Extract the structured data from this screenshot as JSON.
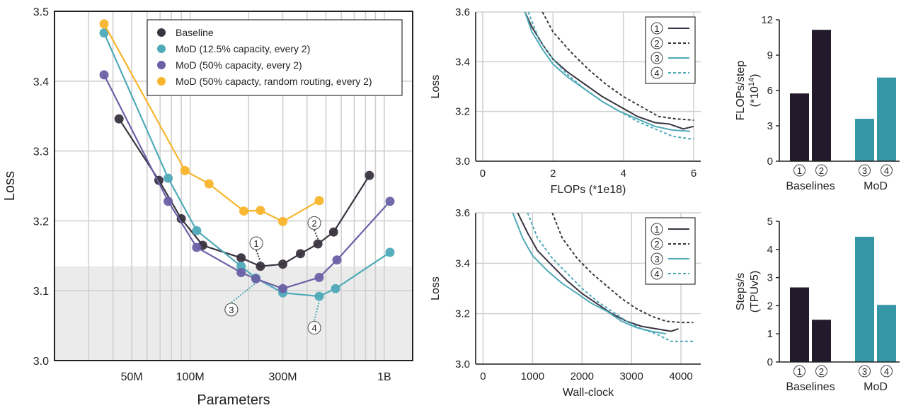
{
  "colors": {
    "baseline": "#3a3440",
    "mod_12": "#4faab8",
    "mod_50": "#6a62a6",
    "mod_rand": "#f7b52c",
    "bar_baseline": "#231a2c",
    "bar_mod": "#3597a6",
    "shade": "#ebebeb",
    "grid": "#d0d0d0"
  },
  "chart_data": [
    {
      "type": "scatter",
      "xlabel": "Parameters",
      "ylabel": "Loss",
      "xscale": "log",
      "xlim": [
        20,
        1400
      ],
      "ylim": [
        3.0,
        3.5
      ],
      "xticks": [
        {
          "value": 50,
          "label": "50M"
        },
        {
          "value": 100,
          "label": "100M"
        },
        {
          "value": 300,
          "label": "300M"
        },
        {
          "value": 1000,
          "label": "1B"
        }
      ],
      "yticks": [
        {
          "value": 3.0,
          "label": "3.0"
        },
        {
          "value": 3.1,
          "label": "3.1"
        },
        {
          "value": 3.2,
          "label": "3.2"
        },
        {
          "value": 3.3,
          "label": "3.3"
        },
        {
          "value": 3.4,
          "label": "3.4"
        },
        {
          "value": 3.5,
          "label": "3.5"
        }
      ],
      "shaded_below": 3.135,
      "legend_position": "top-right",
      "series": [
        {
          "name": "Baseline",
          "color_key": "baseline",
          "points": [
            [
              43,
              3.346
            ],
            [
              69,
              3.258
            ],
            [
              90,
              3.203
            ],
            [
              116,
              3.165
            ],
            [
              183,
              3.147
            ],
            [
              230,
              3.135
            ],
            [
              300,
              3.138
            ],
            [
              370,
              3.153
            ],
            [
              455,
              3.167
            ],
            [
              548,
              3.184
            ],
            [
              838,
              3.265
            ]
          ]
        },
        {
          "name": "MoD (12.5% capacity, every 2)",
          "color_key": "mod_12",
          "points": [
            [
              36,
              3.469
            ],
            [
              77,
              3.261
            ],
            [
              108,
              3.186
            ],
            [
              183,
              3.135
            ],
            [
              218,
              3.118
            ],
            [
              300,
              3.097
            ],
            [
              462,
              3.092
            ],
            [
              561,
              3.103
            ],
            [
              1070,
              3.155
            ]
          ]
        },
        {
          "name": "MoD (50% capacity, every 2)",
          "color_key": "mod_50",
          "points": [
            [
              36,
              3.409
            ],
            [
              77,
              3.228
            ],
            [
              108,
              3.162
            ],
            [
              183,
              3.126
            ],
            [
              218,
              3.117
            ],
            [
              300,
              3.103
            ],
            [
              462,
              3.119
            ],
            [
              570,
              3.144
            ],
            [
              1070,
              3.228
            ]
          ]
        },
        {
          "name": "MoD (50% capacty, random routing, every 2)",
          "color_key": "mod_rand",
          "points": [
            [
              36,
              3.482
            ],
            [
              94,
              3.272
            ],
            [
              125,
              3.253
            ],
            [
              189,
              3.214
            ],
            [
              230,
              3.215
            ],
            [
              300,
              3.199
            ],
            [
              462,
              3.229
            ]
          ]
        }
      ],
      "annotations": [
        {
          "label": "①",
          "x": 219,
          "y": 3.168,
          "target": [
            230,
            3.135
          ],
          "color_key": "baseline"
        },
        {
          "label": "②",
          "x": 436,
          "y": 3.197,
          "target": [
            455,
            3.167
          ],
          "color_key": "baseline"
        },
        {
          "label": "③",
          "x": 163,
          "y": 3.073,
          "target": [
            218,
            3.118
          ],
          "color_key": "mod_12"
        },
        {
          "label": "④",
          "x": 436,
          "y": 3.047,
          "target": [
            462,
            3.092
          ],
          "color_key": "mod_12"
        }
      ]
    },
    {
      "type": "line",
      "xlabel": "FLOPs (*1e18)",
      "ylabel": "Loss",
      "xlim": [
        -0.2,
        6.2
      ],
      "ylim": [
        3.0,
        3.6
      ],
      "xticks": [
        0,
        2,
        4,
        6
      ],
      "yticks": [
        3.0,
        3.2,
        3.4,
        3.6
      ],
      "legend_position": "top-right",
      "series": [
        {
          "name": "①",
          "color_key": "baseline",
          "dash": false,
          "x": [
            1.2,
            1.4,
            1.7,
            2.0,
            2.4,
            2.9,
            3.4,
            3.9,
            4.4,
            4.9,
            5.3,
            5.7,
            6.0
          ],
          "y": [
            3.6,
            3.54,
            3.47,
            3.41,
            3.36,
            3.31,
            3.26,
            3.22,
            3.18,
            3.155,
            3.15,
            3.13,
            3.14
          ]
        },
        {
          "name": "②",
          "color_key": "baseline",
          "dash": true,
          "x": [
            1.7,
            2.0,
            2.5,
            3.0,
            3.5,
            4.0,
            4.5,
            5.0,
            5.5,
            6.0
          ],
          "y": [
            3.6,
            3.52,
            3.44,
            3.37,
            3.31,
            3.26,
            3.22,
            3.18,
            3.17,
            3.165
          ]
        },
        {
          "name": "③",
          "color_key": "mod_12",
          "dash": false,
          "x": [
            1.2,
            1.4,
            1.7,
            2.0,
            2.4,
            2.9,
            3.4,
            3.9,
            4.4,
            4.9,
            5.4,
            5.9
          ],
          "y": [
            3.6,
            3.52,
            3.45,
            3.39,
            3.34,
            3.29,
            3.24,
            3.2,
            3.17,
            3.14,
            3.125,
            3.12
          ]
        },
        {
          "name": "④",
          "color_key": "mod_12",
          "dash": true,
          "x": [
            1.3,
            1.6,
            2.0,
            2.4,
            2.9,
            3.4,
            3.9,
            4.4,
            4.9,
            5.4,
            5.9,
            6.0
          ],
          "y": [
            3.6,
            3.49,
            3.41,
            3.35,
            3.29,
            3.24,
            3.2,
            3.16,
            3.13,
            3.1,
            3.09,
            3.09
          ]
        }
      ]
    },
    {
      "type": "bar",
      "ylabel": "FLOPs/step",
      "ylabel_sub": "(*10",
      "ylabel_sup": "14",
      "ylabel_end": ")",
      "ylim": [
        0,
        12
      ],
      "yticks": [
        0,
        3,
        6,
        9,
        12
      ],
      "categories": [
        "①",
        "②",
        "③",
        "④"
      ],
      "groups": [
        "Baselines",
        "MoD"
      ],
      "values": [
        5.75,
        11.15,
        3.6,
        7.1
      ]
    },
    {
      "type": "line",
      "xlabel": "Wall-clock",
      "ylabel": "Loss",
      "xlim": [
        -150,
        4400
      ],
      "ylim": [
        3.0,
        3.6
      ],
      "xticks": [
        0,
        1000,
        2000,
        3000,
        4000
      ],
      "yticks": [
        3.0,
        3.2,
        3.4,
        3.6
      ],
      "legend_position": "top-right",
      "series": [
        {
          "name": "①",
          "color_key": "baseline",
          "dash": false,
          "x": [
            700,
            900,
            1100,
            1400,
            1700,
            2000,
            2300,
            2600,
            2900,
            3200,
            3500,
            3800,
            3950
          ],
          "y": [
            3.6,
            3.52,
            3.45,
            3.39,
            3.33,
            3.28,
            3.24,
            3.2,
            3.17,
            3.15,
            3.14,
            3.13,
            3.14
          ]
        },
        {
          "name": "②",
          "color_key": "baseline",
          "dash": true,
          "x": [
            1400,
            1600,
            1900,
            2200,
            2500,
            2800,
            3100,
            3400,
            3700,
            4000,
            4250
          ],
          "y": [
            3.6,
            3.5,
            3.42,
            3.36,
            3.31,
            3.26,
            3.22,
            3.19,
            3.17,
            3.165,
            3.165
          ]
        },
        {
          "name": "③",
          "color_key": "mod_12",
          "dash": false,
          "x": [
            600,
            800,
            1000,
            1300,
            1600,
            1900,
            2200,
            2500,
            2800,
            3100,
            3400,
            3700
          ],
          "y": [
            3.6,
            3.5,
            3.43,
            3.37,
            3.32,
            3.28,
            3.24,
            3.21,
            3.17,
            3.145,
            3.13,
            3.12
          ]
        },
        {
          "name": "④",
          "color_key": "mod_12",
          "dash": true,
          "x": [
            900,
            1100,
            1400,
            1700,
            2000,
            2300,
            2600,
            2900,
            3200,
            3500,
            3800,
            4100,
            4250
          ],
          "y": [
            3.6,
            3.5,
            3.42,
            3.36,
            3.3,
            3.25,
            3.21,
            3.17,
            3.14,
            3.12,
            3.09,
            3.09,
            3.09
          ]
        }
      ]
    },
    {
      "type": "bar",
      "ylabel": "Steps/s",
      "ylabel_sub": "(TPUv5)",
      "ylim": [
        0,
        5
      ],
      "yticks": [
        0,
        1,
        2,
        3,
        4,
        5
      ],
      "categories": [
        "①",
        "②",
        "③",
        "④"
      ],
      "groups": [
        "Baselines",
        "MoD"
      ],
      "values": [
        2.65,
        1.5,
        4.45,
        2.03
      ]
    }
  ]
}
